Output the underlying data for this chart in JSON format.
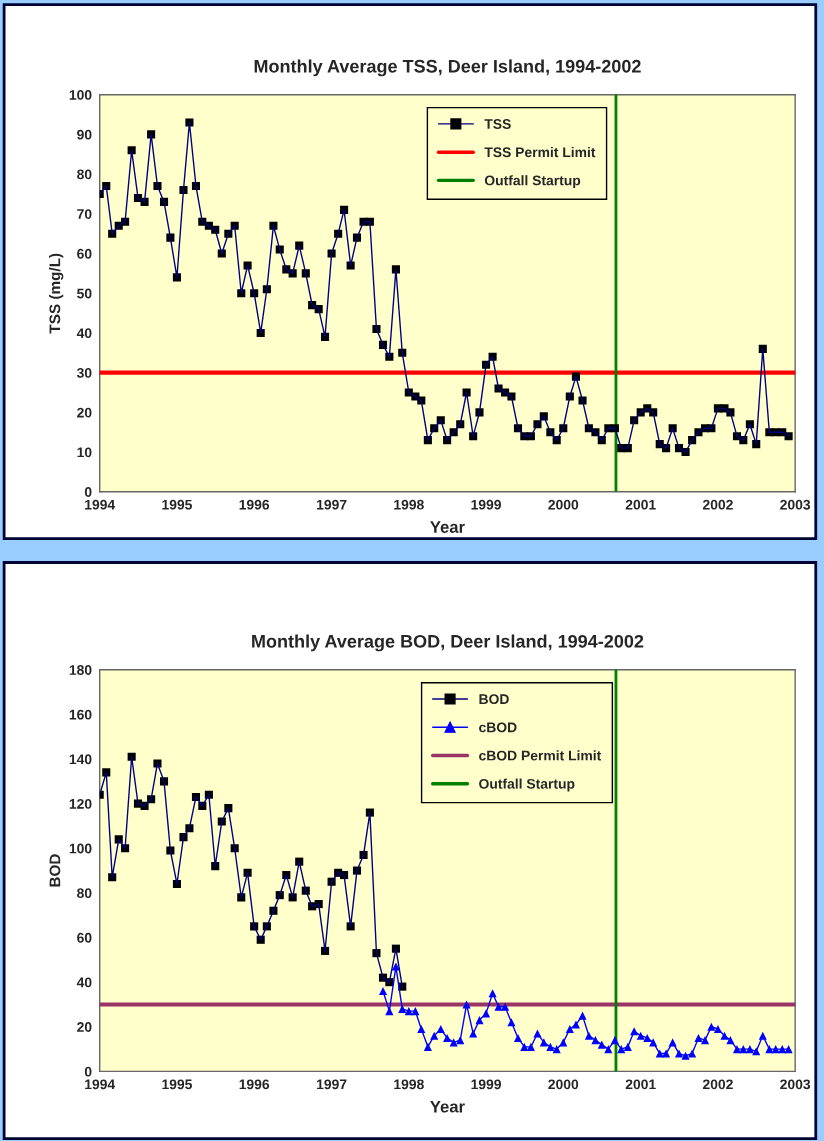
{
  "chart_data": [
    {
      "type": "line",
      "title": "Monthly Average TSS, Deer Island, 1994-2002",
      "xlabel": "Year",
      "ylabel": "TSS (mg/L)",
      "series": [
        {
          "name": "TSS",
          "color": "#000000",
          "marker": "square",
          "x": [
            "1994-01",
            "1994-02",
            "1994-03",
            "1994-04",
            "1994-05",
            "1994-06",
            "1994-07",
            "1994-08",
            "1994-09",
            "1994-10",
            "1994-11",
            "1994-12",
            "1995-01",
            "1995-02",
            "1995-03",
            "1995-04",
            "1995-05",
            "1995-06",
            "1995-07",
            "1995-08",
            "1995-09",
            "1995-10",
            "1995-11",
            "1995-12",
            "1996-01",
            "1996-02",
            "1996-03",
            "1996-04",
            "1996-05",
            "1996-06",
            "1996-07",
            "1996-08",
            "1996-09",
            "1996-10",
            "1996-11",
            "1996-12",
            "1997-01",
            "1997-02",
            "1997-03",
            "1997-04",
            "1997-05",
            "1997-06",
            "1997-07",
            "1997-08",
            "1997-09",
            "1997-10",
            "1997-11",
            "1997-12",
            "1998-01",
            "1998-02",
            "1998-03",
            "1998-04",
            "1998-05",
            "1998-06",
            "1998-07",
            "1998-08",
            "1998-09",
            "1998-10",
            "1998-11",
            "1998-12",
            "1999-01",
            "1999-02",
            "1999-03",
            "1999-04",
            "1999-05",
            "1999-06",
            "1999-07",
            "1999-08",
            "1999-09",
            "1999-10",
            "1999-11",
            "1999-12",
            "2000-01",
            "2000-02",
            "2000-03",
            "2000-04",
            "2000-05",
            "2000-06",
            "2000-07",
            "2000-08",
            "2000-09",
            "2000-10",
            "2000-11",
            "2000-12",
            "2001-01",
            "2001-02",
            "2001-03",
            "2001-04",
            "2001-05",
            "2001-06",
            "2001-07",
            "2001-08",
            "2001-09",
            "2001-10",
            "2001-11",
            "2001-12",
            "2002-01",
            "2002-02",
            "2002-03",
            "2002-04",
            "2002-05",
            "2002-06",
            "2002-07",
            "2002-08",
            "2002-09",
            "2002-10",
            "2002-11",
            "2002-12"
          ],
          "values": [
            75,
            77,
            65,
            67,
            68,
            86,
            74,
            73,
            90,
            77,
            73,
            64,
            54,
            76,
            93,
            77,
            68,
            67,
            66,
            60,
            65,
            67,
            50,
            57,
            50,
            40,
            51,
            67,
            61,
            56,
            55,
            62,
            55,
            47,
            46,
            39,
            60,
            65,
            71,
            57,
            64,
            68,
            68,
            41,
            37,
            34,
            56,
            35,
            25,
            24,
            23,
            13,
            16,
            18,
            13,
            15,
            17,
            25,
            14,
            20,
            32,
            34,
            26,
            25,
            24,
            16,
            14,
            14,
            17,
            19,
            15,
            13,
            16,
            24,
            29,
            23,
            16,
            15,
            13,
            16,
            16,
            11,
            11,
            18,
            20,
            21,
            20,
            12,
            11,
            16,
            11,
            10,
            13,
            15,
            16,
            16,
            21,
            21,
            20,
            14,
            13,
            17,
            12,
            36,
            15,
            15,
            15,
            14
          ]
        }
      ],
      "ref_lines": [
        {
          "axis": "y",
          "value": 30,
          "label": "TSS Permit Limit",
          "color": "#ff0000"
        },
        {
          "axis": "x",
          "value": "2000-09-06",
          "label": "Outfall Startup",
          "color": "#008000"
        }
      ],
      "xlim": [
        "1994",
        "2003"
      ],
      "xticks": [
        "1994",
        "1995",
        "1996",
        "1997",
        "1998",
        "1999",
        "2000",
        "2001",
        "2002",
        "2003"
      ],
      "ylim": [
        0,
        100
      ],
      "yticks": [
        0,
        10,
        20,
        30,
        40,
        50,
        60,
        70,
        80,
        90,
        100
      ],
      "legend": "top",
      "line_style": "solid"
    },
    {
      "type": "line",
      "title": "Monthly Average BOD, Deer Island, 1994-2002",
      "xlabel": "Year",
      "ylabel": "BOD",
      "series": [
        {
          "name": "BOD",
          "color": "#000000",
          "marker": "square",
          "x": [
            "1994-01",
            "1994-02",
            "1994-03",
            "1994-04",
            "1994-05",
            "1994-06",
            "1994-07",
            "1994-08",
            "1994-09",
            "1994-10",
            "1994-11",
            "1994-12",
            "1995-01",
            "1995-02",
            "1995-03",
            "1995-04",
            "1995-05",
            "1995-06",
            "1995-07",
            "1995-08",
            "1995-09",
            "1995-10",
            "1995-11",
            "1995-12",
            "1996-01",
            "1996-02",
            "1996-03",
            "1996-04",
            "1996-05",
            "1996-06",
            "1996-07",
            "1996-08",
            "1996-09",
            "1996-10",
            "1996-11",
            "1996-12",
            "1997-01",
            "1997-02",
            "1997-03",
            "1997-04",
            "1997-05",
            "1997-06",
            "1997-07",
            "1997-08",
            "1997-09",
            "1997-10",
            "1997-11",
            "1997-12"
          ],
          "values": [
            124,
            134,
            87,
            104,
            100,
            141,
            120,
            119,
            122,
            138,
            130,
            99,
            84,
            105,
            109,
            123,
            119,
            124,
            92,
            112,
            118,
            100,
            78,
            89,
            65,
            59,
            65,
            72,
            79,
            88,
            78,
            94,
            81,
            74,
            75,
            54,
            85,
            89,
            88,
            65,
            90,
            97,
            116,
            53,
            42,
            40,
            55,
            38
          ]
        },
        {
          "name": "cBOD",
          "color": "#0000ff",
          "marker": "triangle",
          "x": [
            "1997-09",
            "1997-10",
            "1997-11",
            "1997-12",
            "1998-01",
            "1998-02",
            "1998-03",
            "1998-04",
            "1998-05",
            "1998-06",
            "1998-07",
            "1998-08",
            "1998-09",
            "1998-10",
            "1998-11",
            "1998-12",
            "1999-01",
            "1999-02",
            "1999-03",
            "1999-04",
            "1999-05",
            "1999-06",
            "1999-07",
            "1999-08",
            "1999-09",
            "1999-10",
            "1999-11",
            "1999-12",
            "2000-01",
            "2000-02",
            "2000-03",
            "2000-04",
            "2000-05",
            "2000-06",
            "2000-07",
            "2000-08",
            "2000-09",
            "2000-10",
            "2000-11",
            "2000-12",
            "2001-01",
            "2001-02",
            "2001-03",
            "2001-04",
            "2001-05",
            "2001-06",
            "2001-07",
            "2001-08",
            "2001-09",
            "2001-10",
            "2001-11",
            "2001-12",
            "2002-01",
            "2002-02",
            "2002-03",
            "2002-04",
            "2002-05",
            "2002-06",
            "2002-07",
            "2002-08",
            "2002-09",
            "2002-10",
            "2002-11",
            "2002-12"
          ],
          "values": [
            36,
            27,
            47,
            28,
            27,
            27,
            19,
            11,
            16,
            19,
            15,
            13,
            14,
            30,
            17,
            23,
            26,
            35,
            29,
            29,
            22,
            15,
            11,
            11,
            17,
            13,
            11,
            10,
            13,
            19,
            21,
            25,
            16,
            14,
            12,
            10,
            14,
            10,
            11,
            18,
            16,
            15,
            13,
            8,
            8,
            13,
            8,
            7,
            8,
            15,
            14,
            20,
            19,
            16,
            14,
            10,
            10,
            10,
            9,
            16,
            10,
            10,
            10,
            10
          ]
        }
      ],
      "ref_lines": [
        {
          "axis": "y",
          "value": 30,
          "label": "cBOD Permit Limit",
          "color": "#993366"
        },
        {
          "axis": "x",
          "value": "2000-09-06",
          "label": "Outfall Startup",
          "color": "#008000"
        }
      ],
      "xlim": [
        "1994",
        "2003"
      ],
      "xticks": [
        "1994",
        "1995",
        "1996",
        "1997",
        "1998",
        "1999",
        "2000",
        "2001",
        "2002",
        "2003"
      ],
      "ylim": [
        0,
        180
      ],
      "yticks": [
        0,
        20,
        40,
        60,
        80,
        100,
        120,
        140,
        160,
        180
      ],
      "legend": "top",
      "line_style": "solid"
    }
  ]
}
